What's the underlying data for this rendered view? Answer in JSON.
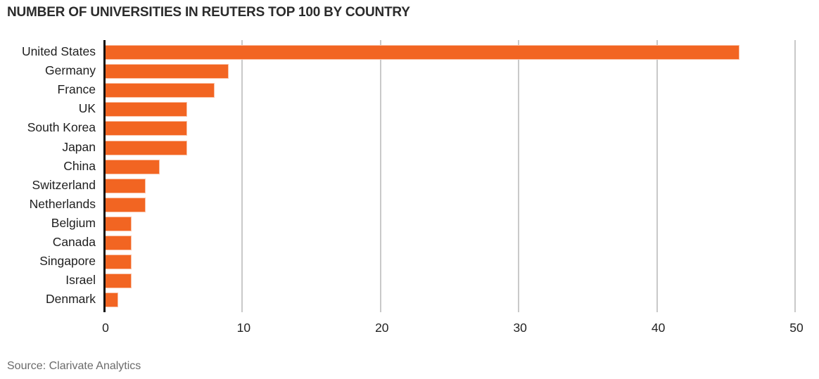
{
  "title": "NUMBER OF UNIVERSITIES IN REUTERS TOP 100 BY COUNTRY",
  "source": "Source: Clarivate Analytics",
  "colors": {
    "bar": "#F26522",
    "axis_line": "#0E0E0E",
    "gridline": "#C9C9C9",
    "title_text": "#2B2B2B",
    "label_text": "#1F1F1F",
    "tick_text": "#242424",
    "source_text": "#6B6B6B",
    "background": "#FFFFFF"
  },
  "chart_data": {
    "type": "bar",
    "orientation": "horizontal",
    "title": "NUMBER OF UNIVERSITIES IN REUTERS TOP 100 BY COUNTRY",
    "categories": [
      "United States",
      "Germany",
      "France",
      "UK",
      "South Korea",
      "Japan",
      "China",
      "Switzerland",
      "Netherlands",
      "Belgium",
      "Canada",
      "Singapore",
      "Israel",
      "Denmark"
    ],
    "values": [
      46,
      9,
      8,
      6,
      6,
      6,
      4,
      3,
      3,
      2,
      2,
      2,
      2,
      1
    ],
    "xlabel": "",
    "ylabel": "",
    "xlim": [
      0,
      50
    ],
    "xticks": [
      0,
      10,
      20,
      30,
      40,
      50
    ],
    "grid": true,
    "legend": false,
    "source": "Source: Clarivate Analytics"
  }
}
